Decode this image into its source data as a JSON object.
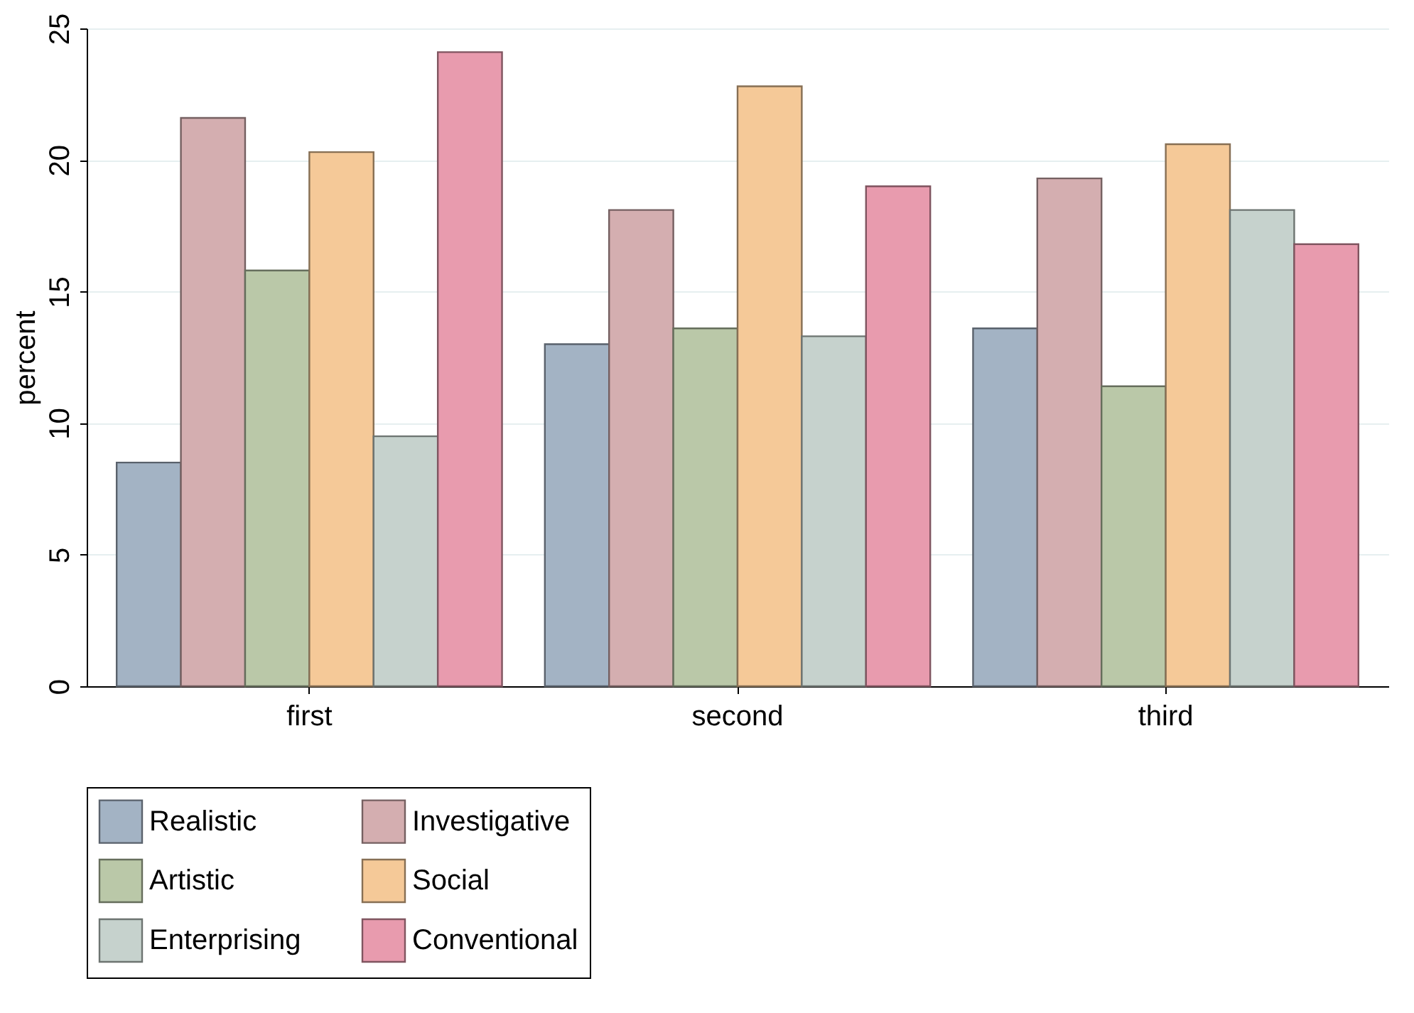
{
  "chart_data": {
    "type": "bar",
    "ylabel": "percent",
    "categories": [
      "first",
      "second",
      "third"
    ],
    "series": [
      {
        "name": "Realistic",
        "color": "#a3b3c4",
        "values": [
          8.5,
          13.0,
          13.6
        ]
      },
      {
        "name": "Investigative",
        "color": "#d4aeb0",
        "values": [
          21.6,
          18.1,
          19.3
        ]
      },
      {
        "name": "Artistic",
        "color": "#bac8a8",
        "values": [
          15.8,
          13.6,
          11.4
        ]
      },
      {
        "name": "Social",
        "color": "#f5c998",
        "values": [
          20.3,
          22.8,
          20.6
        ]
      },
      {
        "name": "Enterprising",
        "color": "#c6d2cd",
        "values": [
          9.5,
          13.3,
          18.1
        ]
      },
      {
        "name": "Conventional",
        "color": "#e89bae",
        "values": [
          24.1,
          19.0,
          16.8
        ]
      }
    ],
    "ylim": [
      0,
      25
    ],
    "yticks": [
      0,
      5,
      10,
      15,
      20,
      25
    ],
    "grid": "y",
    "legend": "bottom"
  }
}
